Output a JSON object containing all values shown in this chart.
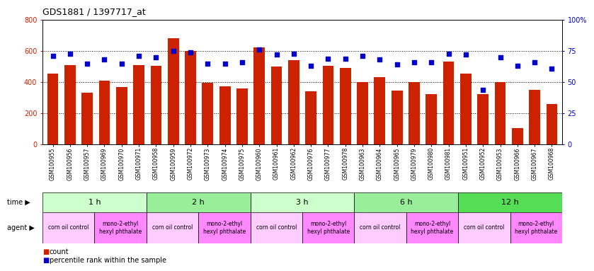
{
  "title": "GDS1881 / 1397717_at",
  "samples": [
    "GSM100955",
    "GSM100956",
    "GSM100957",
    "GSM100969",
    "GSM100970",
    "GSM100971",
    "GSM100958",
    "GSM100959",
    "GSM100972",
    "GSM100973",
    "GSM100974",
    "GSM100975",
    "GSM100960",
    "GSM100961",
    "GSM100962",
    "GSM100976",
    "GSM100977",
    "GSM100978",
    "GSM100963",
    "GSM100964",
    "GSM100965",
    "GSM100979",
    "GSM100980",
    "GSM100981",
    "GSM100951",
    "GSM100952",
    "GSM100953",
    "GSM100966",
    "GSM100967",
    "GSM100968"
  ],
  "counts": [
    455,
    510,
    330,
    410,
    370,
    510,
    505,
    680,
    600,
    395,
    375,
    360,
    625,
    500,
    540,
    340,
    505,
    490,
    400,
    430,
    345,
    400,
    325,
    530,
    455,
    325,
    400,
    105,
    350,
    260
  ],
  "percentile_ranks": [
    71,
    73,
    65,
    68,
    65,
    71,
    70,
    75,
    74,
    65,
    65,
    66,
    76,
    72,
    73,
    63,
    69,
    69,
    71,
    68,
    64,
    66,
    66,
    73,
    72,
    44,
    70,
    63,
    66,
    61
  ],
  "bar_color": "#cc2200",
  "dot_color": "#0000cc",
  "time_groups": [
    {
      "label": "1 h",
      "start": 0,
      "end": 6,
      "color": "#ccffcc"
    },
    {
      "label": "2 h",
      "start": 6,
      "end": 12,
      "color": "#99ee99"
    },
    {
      "label": "3 h",
      "start": 12,
      "end": 18,
      "color": "#ccffcc"
    },
    {
      "label": "6 h",
      "start": 18,
      "end": 24,
      "color": "#99ee99"
    },
    {
      "label": "12 h",
      "start": 24,
      "end": 30,
      "color": "#55dd55"
    }
  ],
  "agent_groups": [
    {
      "label": "corn oil control",
      "start": 0,
      "end": 3,
      "color": "#ffccff"
    },
    {
      "label": "mono-2-ethyl\nhexyl phthalate",
      "start": 3,
      "end": 6,
      "color": "#ff88ff"
    },
    {
      "label": "corn oil control",
      "start": 6,
      "end": 9,
      "color": "#ffccff"
    },
    {
      "label": "mono-2-ethyl\nhexyl phthalate",
      "start": 9,
      "end": 12,
      "color": "#ff88ff"
    },
    {
      "label": "corn oil control",
      "start": 12,
      "end": 15,
      "color": "#ffccff"
    },
    {
      "label": "mono-2-ethyl\nhexyl phthalate",
      "start": 15,
      "end": 18,
      "color": "#ff88ff"
    },
    {
      "label": "corn oil control",
      "start": 18,
      "end": 21,
      "color": "#ffccff"
    },
    {
      "label": "mono-2-ethyl\nhexyl phthalate",
      "start": 21,
      "end": 24,
      "color": "#ff88ff"
    },
    {
      "label": "corn oil control",
      "start": 24,
      "end": 27,
      "color": "#ffccff"
    },
    {
      "label": "mono-2-ethyl\nhexyl phthalate",
      "start": 27,
      "end": 30,
      "color": "#ff88ff"
    }
  ],
  "ylim_left": [
    0,
    800
  ],
  "ylim_right": [
    0,
    100
  ],
  "yticks_left": [
    0,
    200,
    400,
    600,
    800
  ],
  "yticks_right": [
    0,
    25,
    50,
    75,
    100
  ],
  "ytick_labels_right": [
    "0",
    "25",
    "50",
    "75",
    "100%"
  ],
  "background_color": "#ffffff",
  "plot_bg_color": "#ffffff",
  "grid_color": "#000000"
}
